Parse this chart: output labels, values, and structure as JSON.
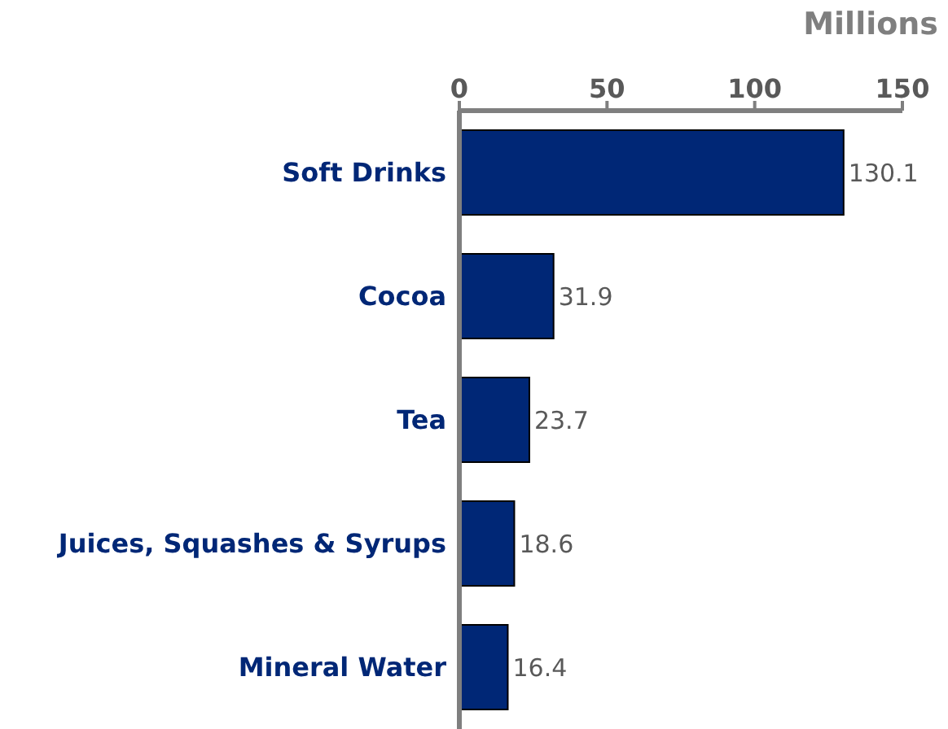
{
  "chart_data": {
    "type": "bar",
    "orientation": "horizontal",
    "xlabel": "Millions",
    "categories": [
      "Soft Drinks",
      "Cocoa",
      "Tea",
      "Juices, Squashes & Syrups",
      "Mineral Water"
    ],
    "values": [
      130.1,
      31.9,
      23.7,
      18.6,
      16.4
    ],
    "color": "#002776",
    "xlim": [
      0,
      150
    ],
    "xticks": [
      0,
      50,
      100,
      150
    ],
    "data_labels": true
  }
}
